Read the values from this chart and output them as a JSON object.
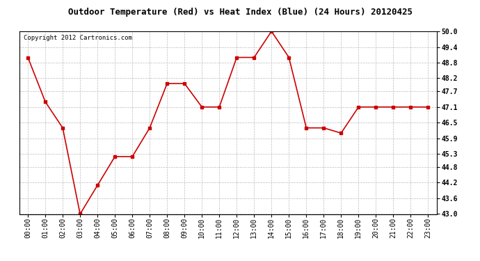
{
  "title": "Outdoor Temperature (Red) vs Heat Index (Blue) (24 Hours) 20120425",
  "copyright_text": "Copyright 2012 Cartronics.com",
  "x_labels": [
    "00:00",
    "01:00",
    "02:00",
    "03:00",
    "04:00",
    "05:00",
    "06:00",
    "07:00",
    "08:00",
    "09:00",
    "10:00",
    "11:00",
    "12:00",
    "13:00",
    "14:00",
    "15:00",
    "16:00",
    "17:00",
    "18:00",
    "19:00",
    "20:00",
    "21:00",
    "22:00",
    "23:00"
  ],
  "temp_values": [
    49.0,
    47.3,
    46.3,
    43.0,
    44.1,
    45.2,
    45.2,
    46.3,
    48.0,
    48.0,
    47.1,
    47.1,
    49.0,
    49.0,
    50.0,
    49.0,
    46.3,
    46.3,
    46.1,
    47.1,
    47.1,
    47.1,
    47.1,
    47.1
  ],
  "heat_values": [],
  "ylim": [
    43.0,
    50.0
  ],
  "yticks": [
    43.0,
    43.6,
    44.2,
    44.8,
    45.3,
    45.9,
    46.5,
    47.1,
    47.7,
    48.2,
    48.8,
    49.4,
    50.0
  ],
  "temp_color": "#cc0000",
  "heat_color": "#0000cc",
  "bg_color": "#ffffff",
  "grid_color": "#bbbbbb",
  "title_fontsize": 9,
  "tick_fontsize": 7,
  "copyright_fontsize": 6.5
}
